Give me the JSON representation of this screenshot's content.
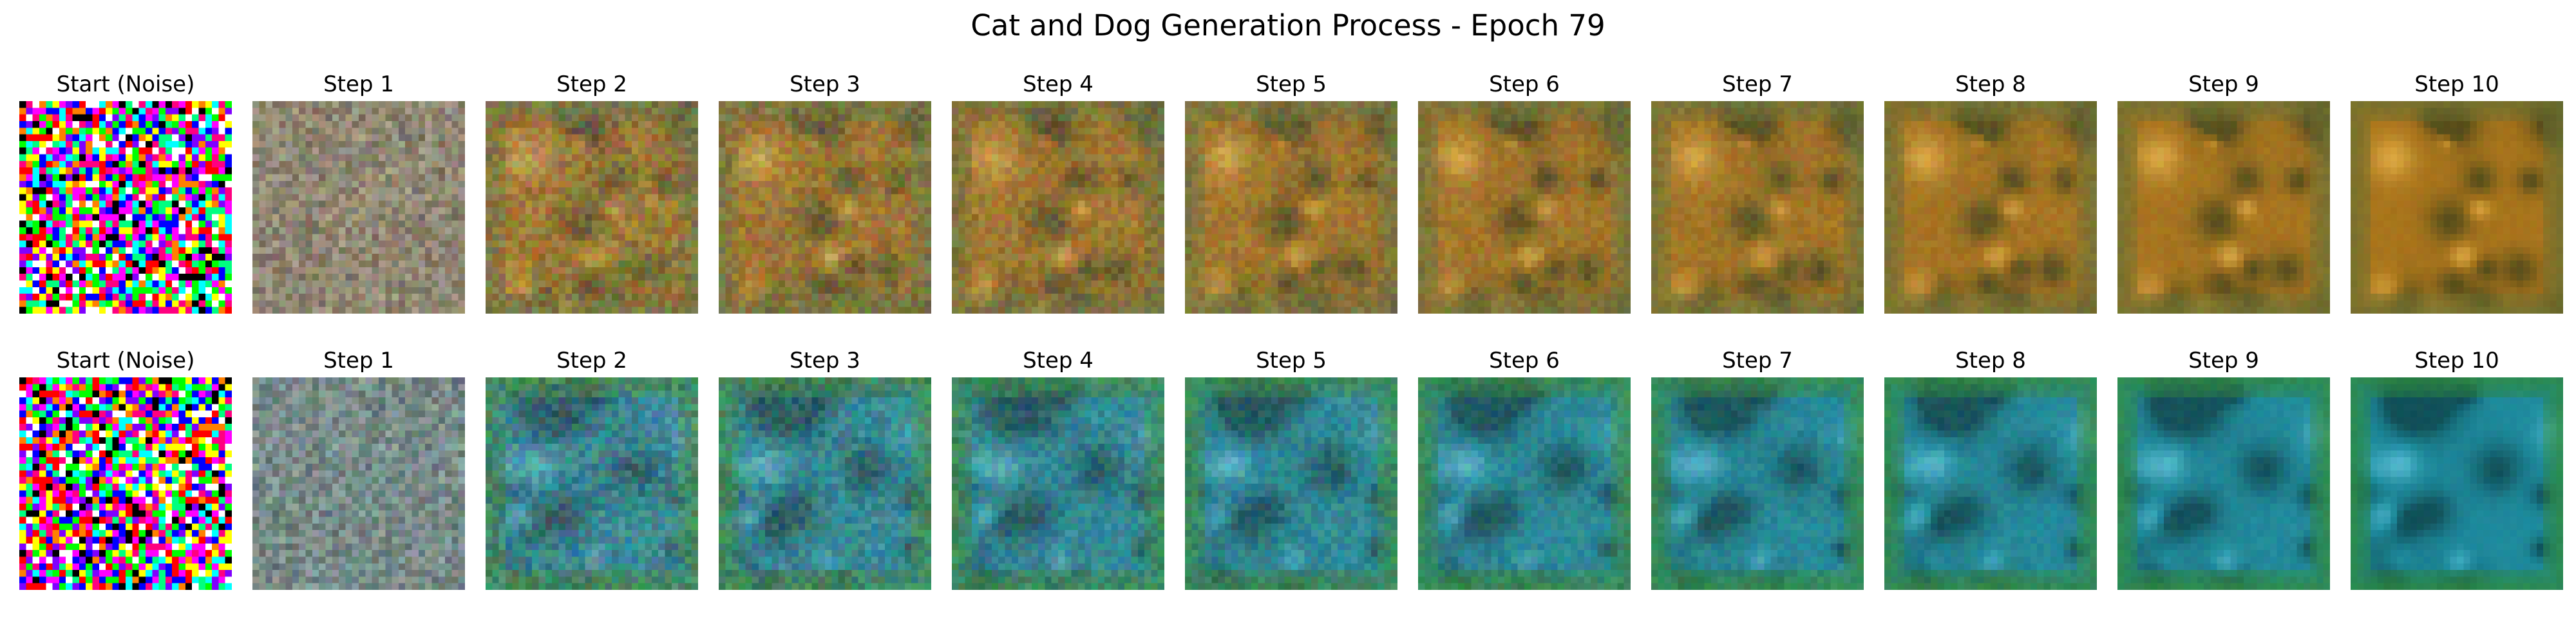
{
  "figure": {
    "title": "Cat and Dog Generation Process - Epoch 79"
  },
  "rows": [
    {
      "palette": "warm",
      "panels": [
        {
          "title": "Start (Noise)",
          "step": 0
        },
        {
          "title": "Step 1",
          "step": 1
        },
        {
          "title": "Step 2",
          "step": 2
        },
        {
          "title": "Step 3",
          "step": 3
        },
        {
          "title": "Step 4",
          "step": 4
        },
        {
          "title": "Step 5",
          "step": 5
        },
        {
          "title": "Step 6",
          "step": 6
        },
        {
          "title": "Step 7",
          "step": 7
        },
        {
          "title": "Step 8",
          "step": 8
        },
        {
          "title": "Step 9",
          "step": 9
        },
        {
          "title": "Step 10",
          "step": 10
        }
      ]
    },
    {
      "palette": "cool",
      "panels": [
        {
          "title": "Start (Noise)",
          "step": 0
        },
        {
          "title": "Step 1",
          "step": 1
        },
        {
          "title": "Step 2",
          "step": 2
        },
        {
          "title": "Step 3",
          "step": 3
        },
        {
          "title": "Step 4",
          "step": 4
        },
        {
          "title": "Step 5",
          "step": 5
        },
        {
          "title": "Step 6",
          "step": 6
        },
        {
          "title": "Step 7",
          "step": 7
        },
        {
          "title": "Step 8",
          "step": 8
        },
        {
          "title": "Step 9",
          "step": 9
        },
        {
          "title": "Step 10",
          "step": 10
        }
      ]
    }
  ],
  "colors": {
    "background": "#ffffff",
    "text": "#000000",
    "noise_gray": "#8a8a84",
    "warm_base": "#a8741c",
    "warm_dark": "#4f4a1a",
    "warm_border": "#6b7032",
    "warm_highlight": "#e8b44a",
    "cool_base": "#1e8a9c",
    "cool_dark": "#0f4a52",
    "cool_border": "#2f8a3c",
    "cool_highlight": "#5ac0d8"
  }
}
